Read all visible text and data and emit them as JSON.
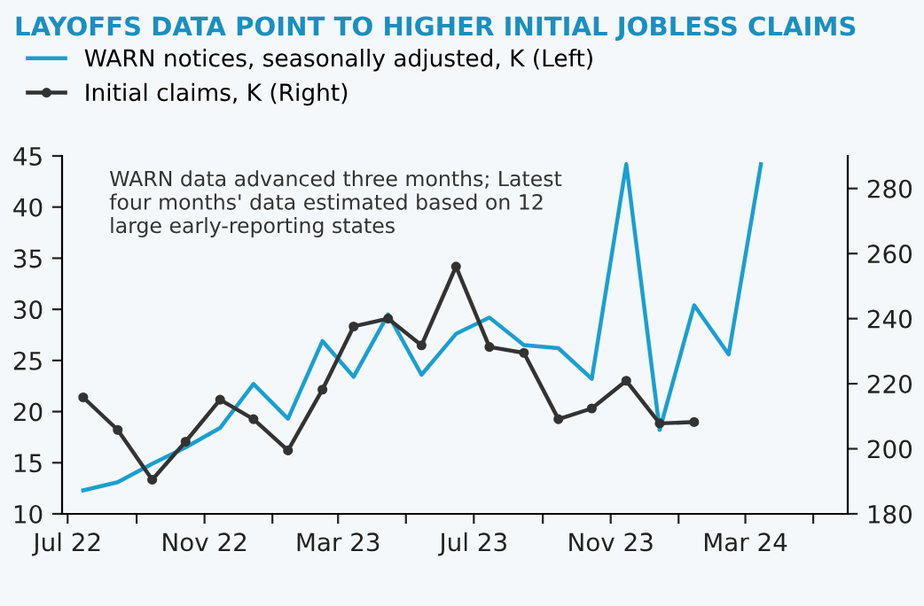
{
  "chart_data": {
    "type": "line",
    "title": "LAYOFFS DATA POINT TO HIGHER INITIAL JOBLESS CLAIMS",
    "annotations": [
      "WARN data advanced three months; Latest four months' data estimated based on 12 large early-reporting states"
    ],
    "legend": "top left",
    "grid": false,
    "xlim": [
      "2022-06-26",
      "2024-06-01"
    ],
    "xticks": [
      {
        "value": "2022-07-01",
        "label": "Jul 22"
      },
      {
        "value": "2022-09-01",
        "label": null
      },
      {
        "value": "2022-11-01",
        "label": "Nov 22"
      },
      {
        "value": "2023-01-01",
        "label": null
      },
      {
        "value": "2023-03-01",
        "label": "Mar 23"
      },
      {
        "value": "2023-05-01",
        "label": null
      },
      {
        "value": "2023-07-01",
        "label": "Jul 23"
      },
      {
        "value": "2023-09-01",
        "label": null
      },
      {
        "value": "2023-11-01",
        "label": "Nov 23"
      },
      {
        "value": "2024-01-01",
        "label": null
      },
      {
        "value": "2024-03-01",
        "label": "Mar 24"
      },
      {
        "value": "2024-05-01",
        "label": null
      }
    ],
    "ylim": [
      10,
      45
    ],
    "yticks": [
      10,
      15,
      20,
      25,
      30,
      35,
      40,
      45
    ],
    "y2lim": [
      180,
      290
    ],
    "y2ticks": [
      180,
      200,
      220,
      240,
      260,
      280
    ],
    "series": [
      {
        "name": "WARN notices, seasonally adjusted, K (Left)",
        "color": "#1a9fcf",
        "marker": "none",
        "x": [
          "2022-07-15",
          "2022-08-15",
          "2022-09-15",
          "2022-10-15",
          "2022-11-15",
          "2022-12-15",
          "2023-01-15",
          "2023-02-15",
          "2023-03-15",
          "2023-04-15",
          "2023-05-15",
          "2023-06-15",
          "2023-07-15",
          "2023-08-15",
          "2023-09-15",
          "2023-10-15",
          "2023-11-15",
          "2023-12-15",
          "2024-01-15",
          "2024-02-15",
          "2024-03-15"
        ],
        "values": [
          12.3,
          13.1,
          14.9,
          16.5,
          18.4,
          22.7,
          19.3,
          26.9,
          23.4,
          29.5,
          23.6,
          27.6,
          29.2,
          26.5,
          26.2,
          23.2,
          44.2,
          18.2,
          30.4,
          25.6,
          44.2
        ]
      },
      {
        "name": "Initial claims, K (Right)",
        "color": "#333333",
        "marker": "circle",
        "axis": "y2",
        "x": [
          "2022-07-15",
          "2022-08-15",
          "2022-09-15",
          "2022-10-15",
          "2022-11-15",
          "2022-12-15",
          "2023-01-15",
          "2023-02-15",
          "2023-03-15",
          "2023-04-15",
          "2023-05-15",
          "2023-06-15",
          "2023-07-15",
          "2023-08-15",
          "2023-09-15",
          "2023-10-15",
          "2023-11-15",
          "2023-12-15",
          "2024-01-15"
        ],
        "values": [
          215.8,
          205.8,
          190.5,
          202.2,
          215.1,
          209.1,
          199.5,
          218.2,
          237.6,
          240,
          231.8,
          256,
          231.3,
          229.5,
          209.1,
          212.4,
          220.9,
          207.8,
          208.2
        ]
      }
    ]
  }
}
